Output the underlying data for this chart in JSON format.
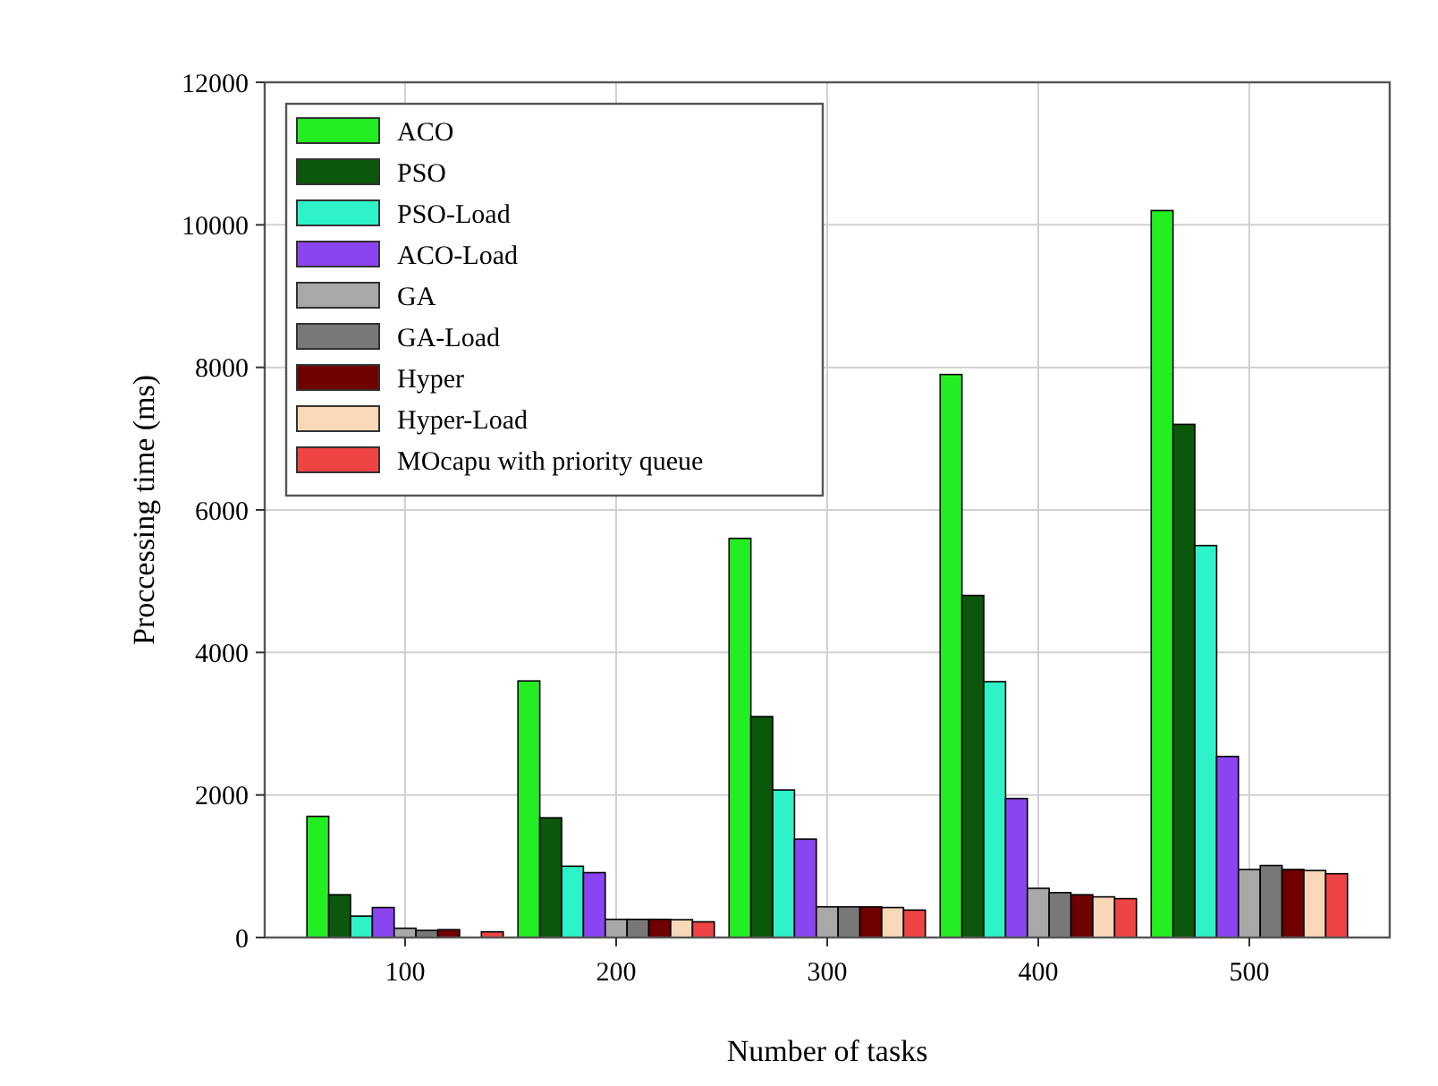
{
  "chart_data": {
    "type": "bar",
    "xlabel": "Number of tasks",
    "ylabel": "Proccessing time (ms)",
    "categories": [
      "100",
      "200",
      "300",
      "400",
      "500"
    ],
    "series": [
      {
        "name": "ACO",
        "color": "#22ee22",
        "values": [
          1700,
          3600,
          5600,
          7900,
          10200
        ]
      },
      {
        "name": "PSO",
        "color": "#0b570b",
        "values": [
          600,
          1680,
          3100,
          4800,
          7200
        ]
      },
      {
        "name": "PSO-Load",
        "color": "#2ef2c8",
        "values": [
          300,
          1000,
          2070,
          3590,
          5500
        ]
      },
      {
        "name": "ACO-Load",
        "color": "#8a44f0",
        "values": [
          420,
          910,
          1380,
          1950,
          2540
        ]
      },
      {
        "name": "GA",
        "color": "#a8a8a8",
        "values": [
          130,
          255,
          430,
          690,
          955
        ]
      },
      {
        "name": "GA-Load",
        "color": "#787878",
        "values": [
          100,
          255,
          430,
          630,
          1010
        ]
      },
      {
        "name": "Hyper",
        "color": "#6e0000",
        "values": [
          110,
          255,
          430,
          600,
          955
        ]
      },
      {
        "name": "Hyper-Load",
        "color": "#f8d8b8",
        "values": [
          0,
          250,
          420,
          570,
          940
        ]
      },
      {
        "name": "MOcapu with priority queue",
        "color": "#ee4444",
        "values": [
          80,
          220,
          385,
          545,
          895
        ]
      }
    ],
    "ylim": [
      0,
      12000
    ],
    "yticks": [
      0,
      2000,
      4000,
      6000,
      8000,
      10000,
      12000
    ],
    "grid": true,
    "legend": "top left"
  }
}
